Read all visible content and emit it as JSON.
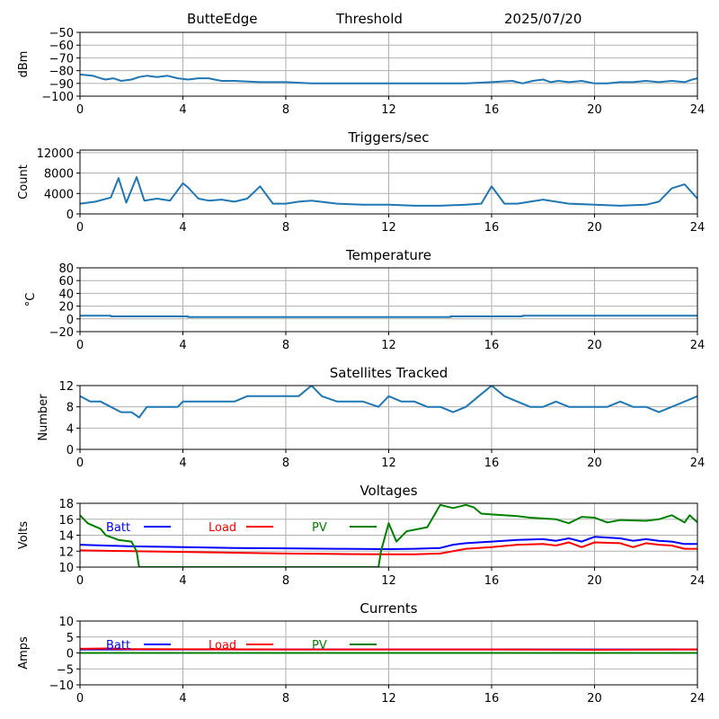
{
  "header": {
    "site": "ButteEdge",
    "mode": "Threshold",
    "date": "2025/07/20"
  },
  "chart_data": [
    {
      "type": "line",
      "title": "",
      "ylabel": "dBm",
      "xlim": [
        0,
        24
      ],
      "ylim": [
        -100,
        -50
      ],
      "xticks": [
        0,
        4,
        8,
        12,
        16,
        20,
        24
      ],
      "yticks": [
        -100,
        -90,
        -80,
        -70,
        -60,
        -50
      ],
      "ytick_labels": [
        "−100",
        "−90",
        "−80",
        "−70",
        "−60",
        "−50"
      ],
      "grid": true,
      "series": [
        {
          "color": "#1f77b4",
          "x": [
            0,
            0.5,
            0.8,
            1,
            1.3,
            1.6,
            2,
            2.3,
            2.6,
            3,
            3.4,
            3.8,
            4.2,
            4.6,
            5,
            5.5,
            6,
            7,
            8,
            9,
            10,
            11,
            12,
            13,
            14,
            15,
            16,
            16.8,
            17.2,
            17.6,
            18,
            18.3,
            18.6,
            19,
            19.5,
            20,
            20.5,
            21,
            21.5,
            22,
            22.5,
            23,
            23.5,
            23.8,
            24
          ],
          "y": [
            -83,
            -84,
            -86,
            -87,
            -86,
            -88,
            -87,
            -85,
            -84,
            -85,
            -84,
            -86,
            -87,
            -86,
            -86,
            -88,
            -88,
            -89,
            -89,
            -90,
            -90,
            -90,
            -90,
            -90,
            -90,
            -90,
            -89,
            -88,
            -90,
            -88,
            -87,
            -89,
            -88,
            -89,
            -88,
            -90,
            -90,
            -89,
            -89,
            -88,
            -89,
            -88,
            -89,
            -87,
            -86
          ]
        }
      ]
    },
    {
      "type": "line",
      "title": "Triggers/sec",
      "ylabel": "Count",
      "xlim": [
        0,
        24
      ],
      "ylim": [
        0,
        12500
      ],
      "xticks": [
        0,
        4,
        8,
        12,
        16,
        20,
        24
      ],
      "yticks": [
        0,
        4000,
        8000,
        12000
      ],
      "ytick_labels": [
        "0",
        "4000",
        "8000",
        "12000"
      ],
      "grid": true,
      "series": [
        {
          "color": "#1f77b4",
          "x": [
            0,
            0.6,
            1.2,
            1.5,
            1.8,
            2.2,
            2.5,
            3,
            3.5,
            4,
            4.2,
            4.6,
            5,
            5.5,
            6,
            6.5,
            7,
            7.5,
            8,
            8.5,
            9,
            10,
            11,
            12,
            13,
            14,
            15,
            15.6,
            16,
            16.5,
            17,
            17.5,
            18,
            18.5,
            19,
            20,
            21,
            22,
            22.5,
            23,
            23.5,
            24
          ],
          "y": [
            2000,
            2400,
            3200,
            7000,
            2200,
            7200,
            2600,
            3000,
            2600,
            6000,
            5200,
            3000,
            2600,
            2800,
            2400,
            3000,
            5400,
            2000,
            2000,
            2400,
            2600,
            2000,
            1800,
            1800,
            1600,
            1600,
            1800,
            2000,
            5400,
            2000,
            2000,
            2400,
            2800,
            2400,
            2000,
            1800,
            1600,
            1800,
            2400,
            5000,
            5800,
            3000
          ]
        }
      ]
    },
    {
      "type": "line",
      "title": "Temperature",
      "ylabel": "°C",
      "xlim": [
        0,
        24
      ],
      "ylim": [
        -20,
        80
      ],
      "xticks": [
        0,
        4,
        8,
        12,
        16,
        20,
        24
      ],
      "yticks": [
        -20,
        0,
        20,
        40,
        60,
        80
      ],
      "ytick_labels": [
        "−20",
        "0",
        "20",
        "40",
        "60",
        "80"
      ],
      "grid": true,
      "series": [
        {
          "color": "#1f77b4",
          "x": [
            0,
            1.2,
            1.2,
            4.2,
            4.2,
            14.4,
            14.4,
            17.2,
            17.2,
            24
          ],
          "y": [
            5,
            5,
            4,
            4,
            3,
            3,
            4,
            4,
            5,
            5
          ]
        }
      ]
    },
    {
      "type": "line",
      "title": "Satellites Tracked",
      "ylabel": "Number",
      "xlim": [
        0,
        24
      ],
      "ylim": [
        0,
        12
      ],
      "xticks": [
        0,
        4,
        8,
        12,
        16,
        20,
        24
      ],
      "yticks": [
        0,
        4,
        8,
        12
      ],
      "ytick_labels": [
        "0",
        "4",
        "8",
        "12"
      ],
      "grid": true,
      "series": [
        {
          "color": "#1f77b4",
          "x": [
            0,
            0.4,
            0.8,
            1.2,
            1.6,
            2,
            2.3,
            2.6,
            3,
            3.4,
            3.8,
            4,
            4.5,
            5,
            5.5,
            6,
            6.5,
            7,
            7.5,
            8,
            8.5,
            9,
            9.4,
            10,
            11,
            11.6,
            12,
            12.5,
            13,
            13.5,
            14,
            14.5,
            15,
            15.5,
            16,
            16.5,
            17,
            17.5,
            18,
            18.5,
            19,
            19.5,
            20,
            20.5,
            21,
            21.5,
            22,
            22.5,
            23,
            23.5,
            24
          ],
          "y": [
            10,
            9,
            9,
            8,
            7,
            7,
            6,
            8,
            8,
            8,
            8,
            9,
            9,
            9,
            9,
            9,
            10,
            10,
            10,
            10,
            10,
            12,
            10,
            9,
            9,
            8,
            10,
            9,
            9,
            8,
            8,
            7,
            8,
            10,
            12,
            10,
            9,
            8,
            8,
            9,
            8,
            8,
            8,
            8,
            9,
            8,
            8,
            7,
            8,
            9,
            10
          ]
        }
      ]
    },
    {
      "type": "line",
      "title": "Voltages",
      "ylabel": "Volts",
      "xlim": [
        0,
        24
      ],
      "ylim": [
        10,
        18
      ],
      "xticks": [
        0,
        4,
        8,
        12,
        16,
        20,
        24
      ],
      "yticks": [
        10,
        12,
        14,
        16,
        18
      ],
      "ytick_labels": [
        "10",
        "12",
        "14",
        "16",
        "18"
      ],
      "grid": true,
      "legend": "top-left",
      "series": [
        {
          "name": "Batt",
          "color": "#0000ff",
          "x": [
            0,
            2,
            4,
            6,
            8,
            10,
            12,
            13,
            14,
            14.5,
            15,
            16,
            17,
            18,
            18.5,
            19,
            19.5,
            20,
            21,
            21.5,
            22,
            22.5,
            23,
            23.5,
            24
          ],
          "y": [
            12.8,
            12.6,
            12.5,
            12.4,
            12.35,
            12.3,
            12.25,
            12.3,
            12.4,
            12.8,
            13,
            13.2,
            13.4,
            13.5,
            13.3,
            13.6,
            13.2,
            13.8,
            13.6,
            13.3,
            13.5,
            13.3,
            13.2,
            12.9,
            12.9
          ]
        },
        {
          "name": "Load",
          "color": "#ff0000",
          "x": [
            0,
            2,
            4,
            6,
            8,
            10,
            12,
            13,
            14,
            14.5,
            15,
            16,
            17,
            18,
            18.5,
            19,
            19.5,
            20,
            21,
            21.5,
            22,
            22.5,
            23,
            23.5,
            24
          ],
          "y": [
            12.1,
            12,
            11.9,
            11.8,
            11.7,
            11.65,
            11.6,
            11.6,
            11.7,
            12,
            12.3,
            12.5,
            12.8,
            12.9,
            12.7,
            13.1,
            12.5,
            13.1,
            13,
            12.5,
            13,
            12.8,
            12.7,
            12.3,
            12.3
          ]
        },
        {
          "name": "PV",
          "color": "#008000",
          "x": [
            0,
            0.3,
            0.8,
            1,
            1.5,
            2,
            2.2,
            2.3,
            11.6,
            11.7,
            12,
            12.3,
            12.7,
            13.5,
            14,
            14.5,
            15,
            15.3,
            15.6,
            16,
            17,
            17.5,
            18,
            18.5,
            19,
            19.5,
            20,
            20.5,
            21,
            22,
            22.5,
            23,
            23.5,
            23.7,
            24
          ],
          "y": [
            16.5,
            15.5,
            14.8,
            14,
            13.4,
            13.2,
            12,
            10,
            10,
            12,
            15.5,
            13.2,
            14.5,
            15,
            17.8,
            17.4,
            17.8,
            17.5,
            16.7,
            16.6,
            16.4,
            16.2,
            16.1,
            16,
            15.5,
            16.3,
            16.2,
            15.6,
            15.9,
            15.8,
            16,
            16.5,
            15.6,
            16.5,
            15.6
          ]
        }
      ]
    },
    {
      "type": "line",
      "title": "Currents",
      "ylabel": "Amps",
      "xlim": [
        0,
        24
      ],
      "ylim": [
        -10,
        10
      ],
      "xticks": [
        0,
        4,
        8,
        12,
        16,
        20,
        24
      ],
      "yticks": [
        -10,
        -5,
        0,
        5,
        10
      ],
      "ytick_labels": [
        "−10",
        "−5",
        "0",
        "5",
        "10"
      ],
      "grid": true,
      "legend": "top-left",
      "series": [
        {
          "name": "Batt",
          "color": "#0000ff",
          "x": [
            0,
            24
          ],
          "y": [
            1.1,
            1.1
          ]
        },
        {
          "name": "Load",
          "color": "#ff0000",
          "x": [
            0,
            1,
            2,
            4,
            8,
            12,
            16,
            20,
            24
          ],
          "y": [
            1.3,
            1.4,
            1.2,
            1.15,
            1.1,
            1.1,
            1.1,
            1.0,
            1.1
          ]
        },
        {
          "name": "PV",
          "color": "#008000",
          "x": [
            0,
            24
          ],
          "y": [
            0,
            0
          ]
        }
      ]
    }
  ]
}
